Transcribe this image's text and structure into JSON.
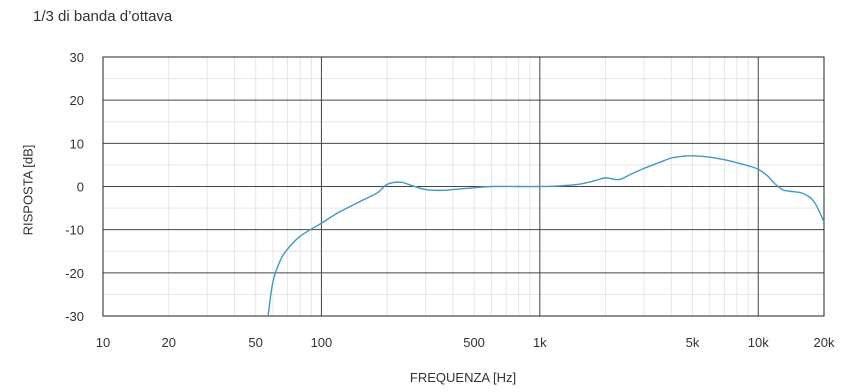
{
  "chart_data": {
    "type": "line",
    "title": "1/3 di banda d’ottava",
    "xlabel": "FREQUENZA [Hz]",
    "ylabel": "RISPOSTA [dB]",
    "x_scale": "log",
    "xlim": [
      10,
      20000
    ],
    "ylim": [
      -30,
      30
    ],
    "x_ticks": [
      {
        "value": 10,
        "label": "10"
      },
      {
        "value": 20,
        "label": "20"
      },
      {
        "value": 50,
        "label": "50"
      },
      {
        "value": 100,
        "label": "100"
      },
      {
        "value": 500,
        "label": "500"
      },
      {
        "value": 1000,
        "label": "1k"
      },
      {
        "value": 5000,
        "label": "5k"
      },
      {
        "value": 10000,
        "label": "10k"
      },
      {
        "value": 20000,
        "label": "20k"
      }
    ],
    "y_ticks": [
      {
        "value": 30,
        "label": "30"
      },
      {
        "value": 20,
        "label": "20"
      },
      {
        "value": 10,
        "label": "10"
      },
      {
        "value": 0,
        "label": "0"
      },
      {
        "value": -10,
        "label": "-10"
      },
      {
        "value": -20,
        "label": "-20"
      },
      {
        "value": -30,
        "label": "-30"
      }
    ],
    "grid": true,
    "line_color": "#3a9bc9",
    "series": [
      {
        "x": [
          57,
          60,
          65,
          70,
          80,
          100,
          120,
          150,
          180,
          200,
          230,
          260,
          300,
          350,
          400,
          500,
          600,
          800,
          1000,
          1200,
          1500,
          1800,
          2000,
          2300,
          2600,
          3000,
          3500,
          4000,
          4500,
          5000,
          6000,
          7000,
          8000,
          9000,
          10000,
          11000,
          12000,
          13000,
          14000,
          16000,
          18000,
          20000
        ],
        "y": [
          -30,
          -22,
          -17,
          -14.5,
          -11.5,
          -8.5,
          -6,
          -3.5,
          -1.5,
          0.5,
          1,
          0.2,
          -0.7,
          -0.9,
          -0.7,
          -0.3,
          0,
          0,
          0,
          0.1,
          0.5,
          1.4,
          2,
          1.6,
          2.8,
          4.2,
          5.5,
          6.6,
          7,
          7.1,
          6.8,
          6.2,
          5.5,
          4.8,
          4,
          2.5,
          0.5,
          -0.8,
          -1.1,
          -1.6,
          -3.5,
          -8.2
        ]
      }
    ]
  }
}
